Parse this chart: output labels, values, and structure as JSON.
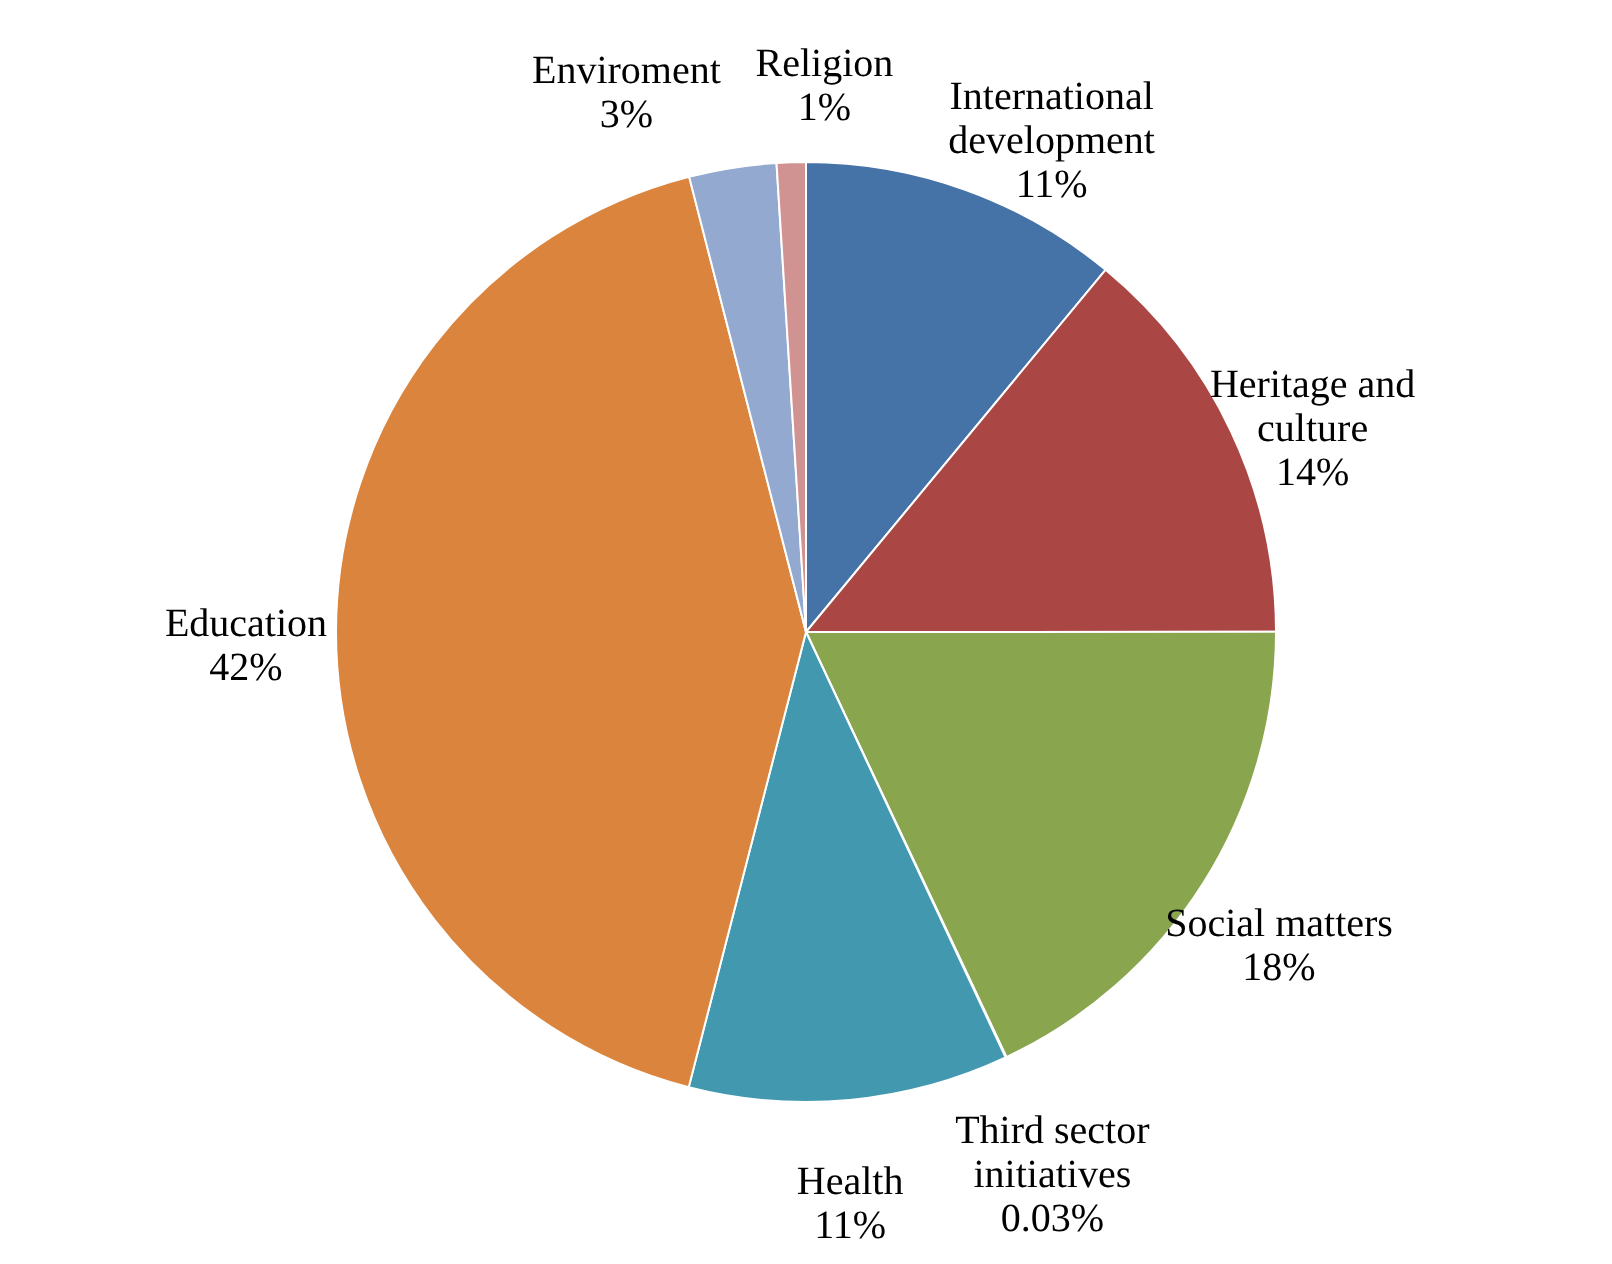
{
  "chart_data": {
    "type": "pie",
    "categories": [
      "International development",
      "Heritage and culture",
      "Social matters",
      "Third sector initiatives",
      "Health",
      "Education",
      "Enviroment",
      "Religion"
    ],
    "values": [
      11,
      14,
      18,
      0.03,
      11,
      42,
      3,
      1
    ],
    "colors": [
      "#4572a7",
      "#aa4643",
      "#89a54e",
      "#d6813b",
      "#4198af",
      "#db843d",
      "#93a9cf",
      "#d19392"
    ],
    "value_labels": [
      "11%",
      "14%",
      "18%",
      "0.03%",
      "11%",
      "42%",
      "3%",
      "1%"
    ]
  }
}
